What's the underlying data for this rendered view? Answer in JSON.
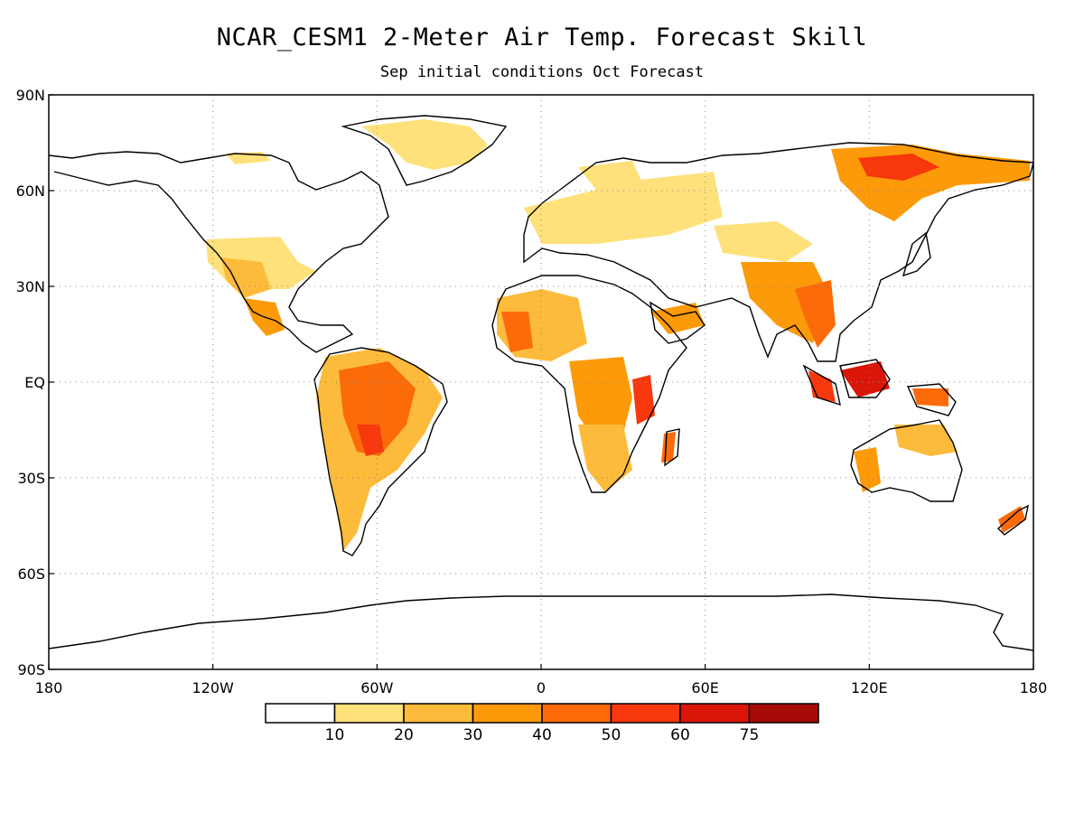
{
  "title": "NCAR_CESM1 2-Meter Air Temp. Forecast Skill",
  "subtitle": "Sep initial conditions  Oct Forecast",
  "map": {
    "projection": "cylindrical equidistant",
    "lon_range": [
      -180,
      180
    ],
    "lat_range": [
      -90,
      90
    ],
    "grid": "dotted",
    "y_ticks": [
      {
        "lat": 90,
        "label": "90N"
      },
      {
        "lat": 60,
        "label": "60N"
      },
      {
        "lat": 30,
        "label": "30N"
      },
      {
        "lat": 0,
        "label": "EQ"
      },
      {
        "lat": -30,
        "label": "30S"
      },
      {
        "lat": -60,
        "label": "60S"
      },
      {
        "lat": -90,
        "label": "90S"
      }
    ],
    "x_ticks": [
      {
        "lon": -180,
        "label": "180"
      },
      {
        "lon": -120,
        "label": "120W"
      },
      {
        "lon": -60,
        "label": "60W"
      },
      {
        "lon": 0,
        "label": "0"
      },
      {
        "lon": 60,
        "label": "60E"
      },
      {
        "lon": 120,
        "label": "120E"
      },
      {
        "lon": 180,
        "label": "180"
      }
    ]
  },
  "colorbar": {
    "bins": [
      {
        "color": "#ffffff"
      },
      {
        "color": "#fee17a"
      },
      {
        "color": "#fdbb3b"
      },
      {
        "color": "#fc9a09"
      },
      {
        "color": "#fb6b0a"
      },
      {
        "color": "#f6380c"
      },
      {
        "color": "#d91608"
      },
      {
        "color": "#a50a06"
      }
    ],
    "labels": [
      "10",
      "20",
      "30",
      "40",
      "50",
      "60",
      "75"
    ]
  },
  "land_color": "#ffffff",
  "coast_color": "#000000"
}
